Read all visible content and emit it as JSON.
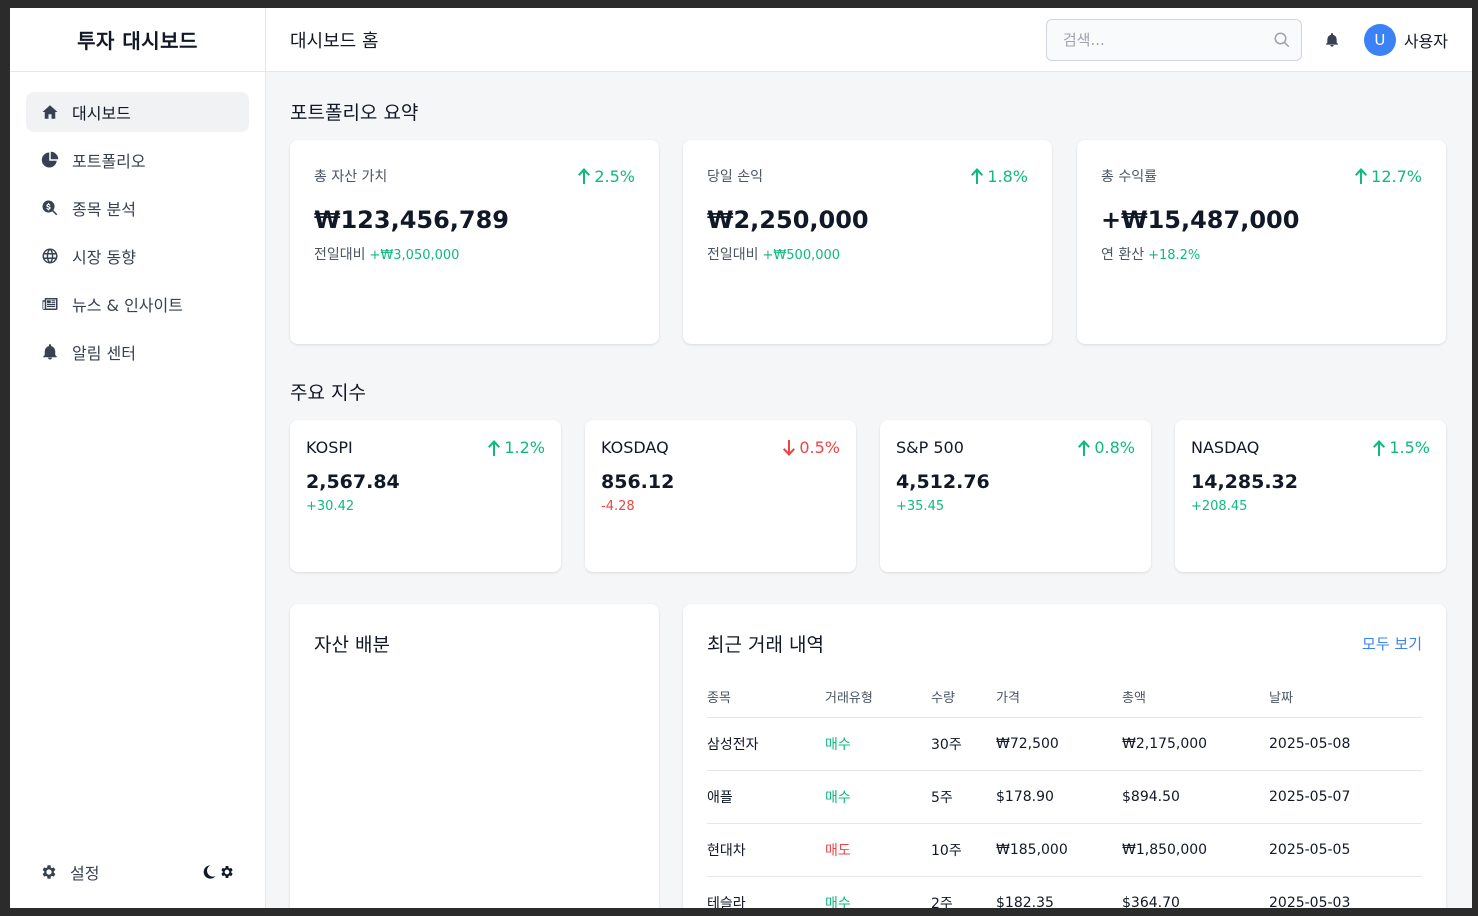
{
  "app": {
    "brand": "투자 대시보드"
  },
  "sidebar": {
    "items": [
      {
        "label": "대시보드",
        "icon": "home-icon",
        "active": true
      },
      {
        "label": "포트폴리오",
        "icon": "pie-chart-icon"
      },
      {
        "label": "종목 분석",
        "icon": "search-dollar-icon"
      },
      {
        "label": "시장 동향",
        "icon": "globe-icon"
      },
      {
        "label": "뉴스 & 인사이트",
        "icon": "newspaper-icon"
      },
      {
        "label": "알림 센터",
        "icon": "bell-icon"
      }
    ],
    "settings_label": "설정"
  },
  "header": {
    "title": "대시보드 홈",
    "search_placeholder": "검색...",
    "avatar_initial": "U",
    "username": "사용자"
  },
  "portfolio": {
    "section_title": "포트폴리오 요약",
    "cards": [
      {
        "label": "총 자산 가치",
        "delta": "2.5%",
        "value": "₩123,456,789",
        "sub_label": "전일대비",
        "sub_value": "+₩3,050,000"
      },
      {
        "label": "당일 손익",
        "delta": "1.8%",
        "value": "₩2,250,000",
        "sub_label": "전일대비",
        "sub_value": "+₩500,000"
      },
      {
        "label": "총 수익률",
        "delta": "12.7%",
        "value": "+₩15,487,000",
        "sub_label": "연 환산",
        "sub_value": "+18.2%"
      }
    ]
  },
  "indices": {
    "section_title": "주요 지수",
    "items": [
      {
        "name": "KOSPI",
        "delta": "1.2%",
        "value": "2,567.84",
        "change": "+30.42",
        "direction": "up"
      },
      {
        "name": "KOSDAQ",
        "delta": "0.5%",
        "value": "856.12",
        "change": "-4.28",
        "direction": "down"
      },
      {
        "name": "S&P 500",
        "delta": "0.8%",
        "value": "4,512.76",
        "change": "+35.45",
        "direction": "up"
      },
      {
        "name": "NASDAQ",
        "delta": "1.5%",
        "value": "14,285.32",
        "change": "+208.45",
        "direction": "up"
      }
    ]
  },
  "allocation": {
    "title": "자산 배분"
  },
  "trades": {
    "title": "최근 거래 내역",
    "view_all": "모두 보기",
    "columns": [
      "종목",
      "거래유형",
      "수량",
      "가격",
      "총액",
      "날짜"
    ],
    "rows": [
      {
        "stock": "삼성전자",
        "type": "매수",
        "qty": "30주",
        "price": "₩72,500",
        "total": "₩2,175,000",
        "date": "2025-05-08",
        "kind": "buy"
      },
      {
        "stock": "애플",
        "type": "매수",
        "qty": "5주",
        "price": "$178.90",
        "total": "$894.50",
        "date": "2025-05-07",
        "kind": "buy"
      },
      {
        "stock": "현대차",
        "type": "매도",
        "qty": "10주",
        "price": "₩185,000",
        "total": "₩1,850,000",
        "date": "2025-05-05",
        "kind": "sell"
      },
      {
        "stock": "테슬라",
        "type": "매수",
        "qty": "2주",
        "price": "$182.35",
        "total": "$364.70",
        "date": "2025-05-03",
        "kind": "buy"
      }
    ]
  },
  "colors": {
    "up": "#10b981",
    "down": "#ef4444",
    "accent": "#3b82f6"
  }
}
